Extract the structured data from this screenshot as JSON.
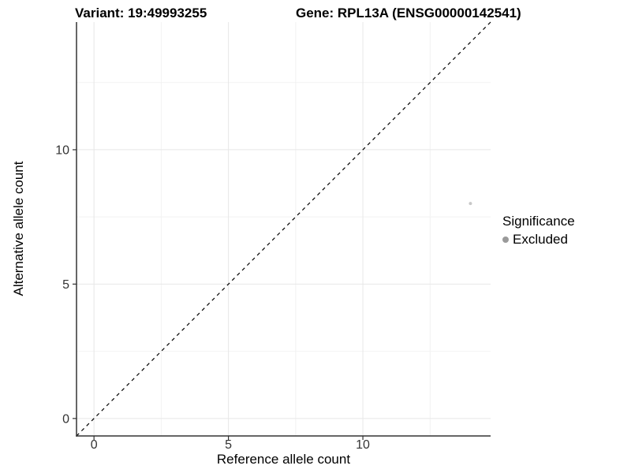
{
  "titles": {
    "variant": "Variant: 19:49993255",
    "gene": "Gene: RPL13A (ENSG00000142541)"
  },
  "chart_data": {
    "type": "scatter",
    "title_left": "Variant: 19:49993255",
    "title_right": "Gene: RPL13A (ENSG00000142541)",
    "xlabel": "Reference allele count",
    "ylabel": "Alternative allele count",
    "xlim": [
      -0.65,
      14.75
    ],
    "ylim": [
      -0.65,
      14.75
    ],
    "x_ticks": [
      0,
      5,
      10
    ],
    "y_ticks": [
      0,
      5,
      10
    ],
    "x_minor_gridlines": [
      2.5,
      7.5,
      12.5
    ],
    "y_minor_gridlines": [
      2.5,
      7.5,
      12.5
    ],
    "grid": true,
    "points": [
      {
        "x": 14,
        "y": 8,
        "series": "Excluded"
      }
    ],
    "reference_line": {
      "style": "dashed",
      "slope": 1,
      "intercept": 0
    },
    "legend": {
      "position": "right",
      "title": "Significance",
      "items": [
        {
          "label": "Excluded",
          "color": "#9a9a9a"
        }
      ]
    },
    "colors": {
      "point": "#c8c8c8",
      "legend_key": "#9a9a9a",
      "axis_line": "#333333",
      "tick_label": "#333333",
      "grid_major": "#e7e7e7",
      "grid_minor": "#f2f2f2",
      "reference_line": "#000000",
      "background": "#ffffff"
    }
  }
}
